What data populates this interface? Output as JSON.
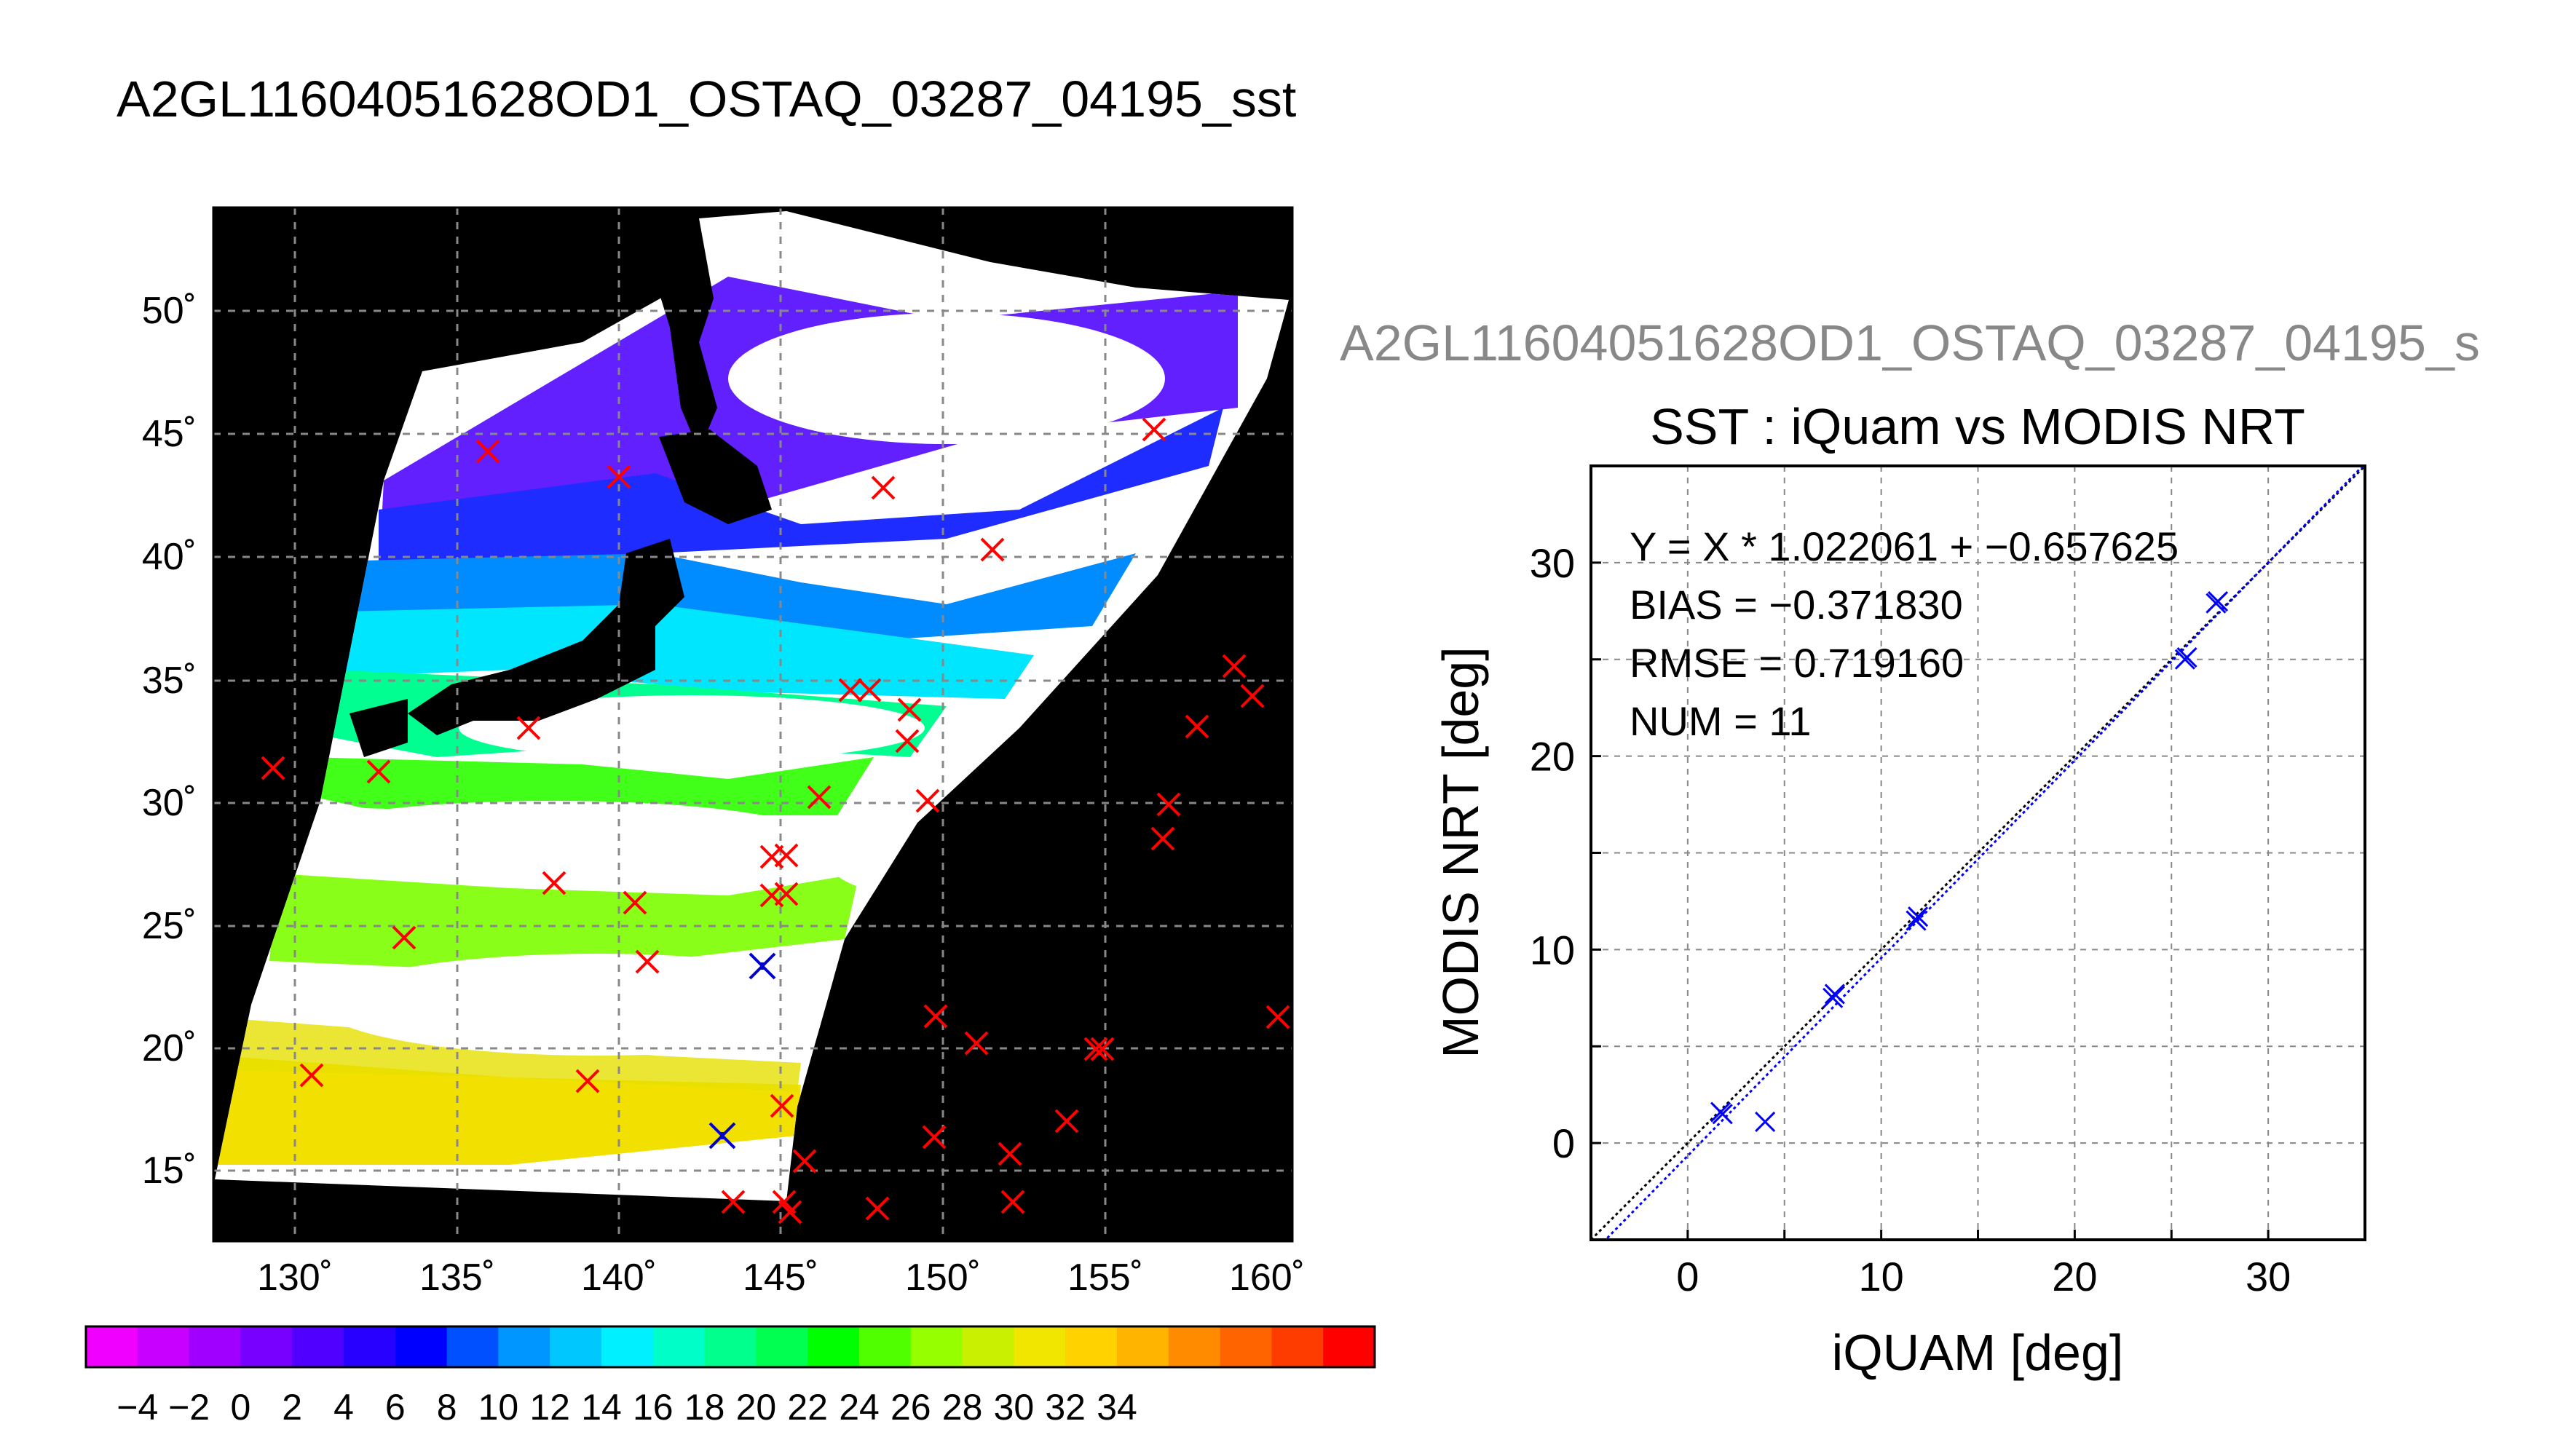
{
  "main_title": "A2GL11604051628OD1_OSTAQ_03287_04195_sst",
  "secondary_title": "A2GL11604051628OD1_OSTAQ_03287_04195_s",
  "map_panel": {
    "lat_ticks": [
      "15˚",
      "20˚",
      "25˚",
      "30˚",
      "35˚",
      "40˚",
      "45˚",
      "50˚"
    ],
    "lon_ticks": [
      "130˚",
      "135˚",
      "140˚",
      "145˚",
      "150˚",
      "155˚",
      "160˚"
    ],
    "colorbar": {
      "labels": [
        "−4",
        "−2",
        "0",
        "2",
        "4",
        "6",
        "8",
        "10",
        "12",
        "14",
        "16",
        "18",
        "20",
        "22",
        "24",
        "26",
        "28",
        "30",
        "32",
        "34"
      ],
      "colors": [
        "#f000ff",
        "#c800ff",
        "#a000ff",
        "#7800ff",
        "#5000ff",
        "#2800ff",
        "#0000ff",
        "#0050ff",
        "#0096ff",
        "#00c8ff",
        "#00f0ff",
        "#00ffc8",
        "#00ff8c",
        "#00ff50",
        "#00ff00",
        "#50ff00",
        "#96ff00",
        "#c8f000",
        "#f0e600",
        "#ffd200",
        "#ffb400",
        "#ff8c00",
        "#ff6400",
        "#ff3c00",
        "#ff0000"
      ]
    },
    "colors": {
      "land": "#000000",
      "cloud": "#ffffff",
      "marker_red": "#ff0000",
      "marker_blue": "#0000cc",
      "grid": "#888888"
    }
  },
  "chart_data": {
    "type": "scatter",
    "title": "SST : iQuam vs MODIS NRT",
    "xlabel": "iQUAM [deg]",
    "ylabel": "MODIS NRT [deg]",
    "xlim": [
      -5,
      35
    ],
    "ylim": [
      -5,
      35
    ],
    "xticks": [
      "0",
      "10",
      "20",
      "30"
    ],
    "yticks": [
      "0",
      "10",
      "20",
      "30"
    ],
    "grid": true,
    "annotations": [
      "Y = X * 1.022061 + −0.657625",
      "BIAS = −0.371830",
      "RMSE = 0.719160",
      "NUM = 11"
    ],
    "series": [
      {
        "points": [
          [
            1.7,
            1.6
          ],
          [
            1.8,
            1.5
          ],
          [
            4.0,
            1.1
          ],
          [
            7.5,
            7.5
          ],
          [
            7.6,
            7.7
          ],
          [
            11.8,
            11.5
          ],
          [
            11.9,
            11.7
          ],
          [
            25.7,
            25.0
          ],
          [
            25.8,
            25.1
          ],
          [
            27.3,
            27.9
          ],
          [
            27.4,
            28.0
          ]
        ],
        "color": "#0000ff"
      }
    ],
    "lines": [
      {
        "slope": 1.0,
        "intercept": 0.0,
        "color": "#000000",
        "style": "dotted"
      },
      {
        "slope": 1.022061,
        "intercept": -0.657625,
        "color": "#0000ff",
        "style": "dotted"
      }
    ]
  }
}
